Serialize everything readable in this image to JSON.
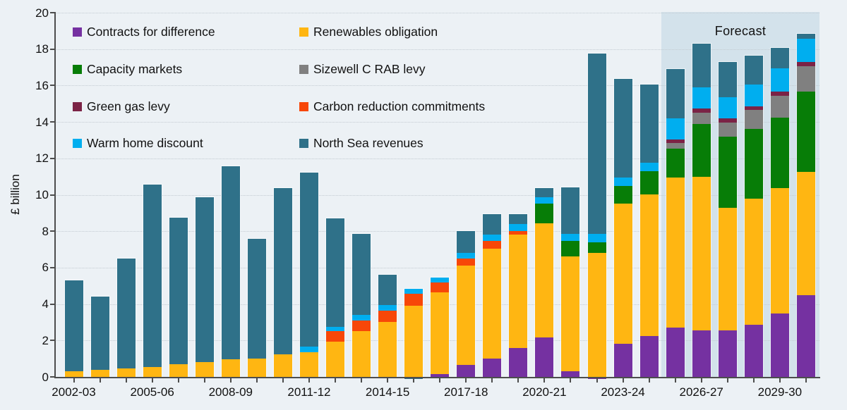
{
  "page": {
    "background": "#ECF1F5"
  },
  "chart_data": {
    "type": "bar",
    "subtype": "stacked-column",
    "title": "",
    "xlabel": "",
    "ylabel": "£ billion",
    "ylim": [
      0,
      20
    ],
    "ytick_step": 2,
    "grid": "horizontal-dotted",
    "forecast_label": "Forecast",
    "forecast_start_year": "2025-26",
    "forecast_band_color": "#D3E2EB",
    "x_axis_labeled_ticks": [
      "2002-03",
      "2005-06",
      "2008-09",
      "2011-12",
      "2014-15",
      "2017-18",
      "2020-21",
      "2023-24",
      "2026-27",
      "2029-30"
    ],
    "series": [
      {
        "key": "cfd",
        "label": "Contracts for difference",
        "color": "#7531A1"
      },
      {
        "key": "ro",
        "label": "Renewables obligation",
        "color": "#FFB612"
      },
      {
        "key": "cm",
        "label": "Capacity markets",
        "color": "#077D07"
      },
      {
        "key": "rab",
        "label": "Sizewell C RAB levy",
        "color": "#808080"
      },
      {
        "key": "ggl",
        "label": "Green gas levy",
        "color": "#7B2346"
      },
      {
        "key": "crc",
        "label": "Carbon reduction commitments",
        "color": "#F74708"
      },
      {
        "key": "whd",
        "label": "Warm home discount",
        "color": "#00AEEF"
      },
      {
        "key": "ns",
        "label": "North Sea revenues",
        "color": "#2F7189"
      }
    ],
    "legend_columns": [
      [
        "cfd",
        "cm",
        "ggl",
        "whd"
      ],
      [
        "ro",
        "rab",
        "crc",
        "ns"
      ]
    ],
    "years": [
      {
        "year": "2002-03",
        "segments": [
          [
            "ro",
            0.3
          ],
          [
            "ns",
            5.0
          ]
        ]
      },
      {
        "year": "2003-04",
        "segments": [
          [
            "ro",
            0.4
          ],
          [
            "ns",
            4.0
          ]
        ]
      },
      {
        "year": "2004-05",
        "segments": [
          [
            "ro",
            0.45
          ],
          [
            "ns",
            6.05
          ]
        ]
      },
      {
        "year": "2005-06",
        "segments": [
          [
            "ro",
            0.55
          ],
          [
            "ns",
            10.0
          ]
        ]
      },
      {
        "year": "2006-07",
        "segments": [
          [
            "ro",
            0.7
          ],
          [
            "ns",
            8.05
          ]
        ]
      },
      {
        "year": "2007-08",
        "segments": [
          [
            "ro",
            0.8
          ],
          [
            "ns",
            9.05
          ]
        ]
      },
      {
        "year": "2008-09",
        "segments": [
          [
            "ro",
            0.95
          ],
          [
            "ns",
            10.6
          ]
        ]
      },
      {
        "year": "2009-10",
        "segments": [
          [
            "ro",
            1.0
          ],
          [
            "ns",
            6.6
          ]
        ]
      },
      {
        "year": "2010-11",
        "segments": [
          [
            "ro",
            1.25
          ],
          [
            "ns",
            9.1
          ]
        ]
      },
      {
        "year": "2011-12",
        "segments": [
          [
            "ro",
            1.35
          ],
          [
            "whd",
            0.3
          ],
          [
            "ns",
            9.55
          ]
        ]
      },
      {
        "year": "2012-13",
        "segments": [
          [
            "ro",
            1.95
          ],
          [
            "crc",
            0.55
          ],
          [
            "whd",
            0.25
          ],
          [
            "ns",
            5.95
          ]
        ]
      },
      {
        "year": "2013-14",
        "segments": [
          [
            "ro",
            2.5
          ],
          [
            "crc",
            0.6
          ],
          [
            "whd",
            0.3
          ],
          [
            "ns",
            4.45
          ]
        ]
      },
      {
        "year": "2014-15",
        "segments": [
          [
            "ro",
            3.0
          ],
          [
            "crc",
            0.65
          ],
          [
            "whd",
            0.3
          ],
          [
            "ns",
            1.65
          ]
        ]
      },
      {
        "year": "2015-16",
        "segments": [
          [
            "ro",
            3.9
          ],
          [
            "crc",
            0.65
          ],
          [
            "whd",
            0.3
          ],
          [
            "ns",
            -0.1
          ]
        ]
      },
      {
        "year": "2016-17",
        "segments": [
          [
            "cfd",
            0.15
          ],
          [
            "ro",
            4.5
          ],
          [
            "crc",
            0.55
          ],
          [
            "whd",
            0.25
          ]
        ]
      },
      {
        "year": "2017-18",
        "segments": [
          [
            "cfd",
            0.65
          ],
          [
            "ro",
            5.45
          ],
          [
            "crc",
            0.4
          ],
          [
            "whd",
            0.3
          ],
          [
            "ns",
            1.2
          ]
        ]
      },
      {
        "year": "2018-19",
        "segments": [
          [
            "cfd",
            1.0
          ],
          [
            "ro",
            6.05
          ],
          [
            "crc",
            0.4
          ],
          [
            "whd",
            0.35
          ],
          [
            "ns",
            1.15
          ]
        ]
      },
      {
        "year": "2019-20",
        "segments": [
          [
            "cfd",
            1.6
          ],
          [
            "ro",
            6.2
          ],
          [
            "crc",
            0.2
          ],
          [
            "whd",
            0.4
          ],
          [
            "ns",
            0.55
          ]
        ]
      },
      {
        "year": "2020-21",
        "segments": [
          [
            "cfd",
            2.15
          ],
          [
            "ro",
            6.3
          ],
          [
            "cm",
            1.05
          ],
          [
            "whd",
            0.35
          ],
          [
            "ns",
            0.5
          ]
        ]
      },
      {
        "year": "2021-22",
        "segments": [
          [
            "cfd",
            0.3
          ],
          [
            "ro",
            6.3
          ],
          [
            "cm",
            0.85
          ],
          [
            "whd",
            0.4
          ],
          [
            "ns",
            2.55
          ]
        ]
      },
      {
        "year": "2022-23",
        "segments": [
          [
            "cfd",
            -0.1
          ],
          [
            "ro",
            6.8
          ],
          [
            "cm",
            0.6
          ],
          [
            "whd",
            0.45
          ],
          [
            "ns",
            9.9
          ]
        ]
      },
      {
        "year": "2023-24",
        "segments": [
          [
            "cfd",
            1.8
          ],
          [
            "ro",
            7.7
          ],
          [
            "cm",
            1.0
          ],
          [
            "whd",
            0.45
          ],
          [
            "ns",
            5.4
          ]
        ]
      },
      {
        "year": "2024-25",
        "segments": [
          [
            "cfd",
            2.25
          ],
          [
            "ro",
            7.75
          ],
          [
            "cm",
            1.3
          ],
          [
            "whd",
            0.45
          ],
          [
            "ns",
            4.3
          ]
        ]
      },
      {
        "year": "2025-26",
        "segments": [
          [
            "cfd",
            2.7
          ],
          [
            "ro",
            8.25
          ],
          [
            "cm",
            1.6
          ],
          [
            "rab",
            0.3
          ],
          [
            "ggl",
            0.2
          ],
          [
            "whd",
            1.15
          ],
          [
            "ns",
            2.7
          ]
        ]
      },
      {
        "year": "2026-27",
        "segments": [
          [
            "cfd",
            2.55
          ],
          [
            "ro",
            8.45
          ],
          [
            "cm",
            2.9
          ],
          [
            "rab",
            0.6
          ],
          [
            "ggl",
            0.25
          ],
          [
            "whd",
            1.15
          ],
          [
            "ns",
            2.4
          ]
        ]
      },
      {
        "year": "2027-28",
        "segments": [
          [
            "cfd",
            2.55
          ],
          [
            "ro",
            6.75
          ],
          [
            "cm",
            3.9
          ],
          [
            "rab",
            0.75
          ],
          [
            "ggl",
            0.25
          ],
          [
            "whd",
            1.15
          ],
          [
            "ns",
            1.95
          ]
        ]
      },
      {
        "year": "2028-29",
        "segments": [
          [
            "cfd",
            2.85
          ],
          [
            "ro",
            6.95
          ],
          [
            "cm",
            3.8
          ],
          [
            "rab",
            1.05
          ],
          [
            "ggl",
            0.2
          ],
          [
            "whd",
            1.2
          ],
          [
            "ns",
            1.6
          ]
        ]
      },
      {
        "year": "2029-30",
        "segments": [
          [
            "cfd",
            3.5
          ],
          [
            "ro",
            6.85
          ],
          [
            "cm",
            3.9
          ],
          [
            "rab",
            1.2
          ],
          [
            "ggl",
            0.2
          ],
          [
            "whd",
            1.3
          ],
          [
            "ns",
            1.1
          ]
        ]
      },
      {
        "year": "2030-31",
        "segments": [
          [
            "cfd",
            4.5
          ],
          [
            "ro",
            6.75
          ],
          [
            "cm",
            4.4
          ],
          [
            "rab",
            1.4
          ],
          [
            "ggl",
            0.25
          ],
          [
            "whd",
            1.25
          ],
          [
            "ns",
            0.3
          ]
        ]
      }
    ]
  }
}
